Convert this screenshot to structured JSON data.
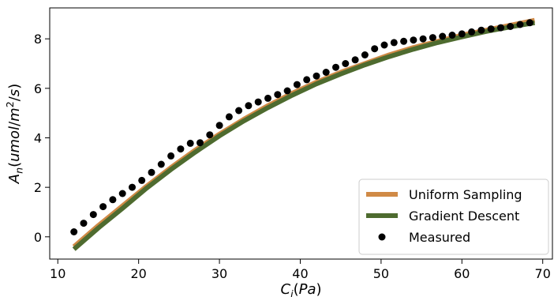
{
  "chart_data": {
    "type": "scatter",
    "xlabel": "C_i(Pa)",
    "ylabel": "A_n(umol/m^2/s)",
    "xlim": [
      9.0,
      71.2
    ],
    "ylim": [
      -0.9,
      9.25
    ],
    "xticks": [
      10,
      20,
      30,
      40,
      50,
      60,
      70
    ],
    "yticks": [
      0,
      2,
      4,
      6,
      8
    ],
    "grid": false,
    "legend_position": "lower-right",
    "series": [
      {
        "name": "Uniform Sampling",
        "kind": "line",
        "color": "#d08a46",
        "x": [
          12,
          15,
          18,
          21,
          24,
          27,
          30,
          33,
          36,
          39,
          42,
          45,
          48,
          51,
          54,
          57,
          60,
          63,
          66,
          69
        ],
        "y": [
          -0.4,
          0.45,
          1.25,
          2.05,
          2.8,
          3.5,
          4.15,
          4.75,
          5.3,
          5.8,
          6.25,
          6.65,
          7.0,
          7.35,
          7.65,
          7.9,
          8.15,
          8.35,
          8.55,
          8.75
        ]
      },
      {
        "name": "Gradient Descent",
        "kind": "line",
        "color": "#4e6b2f",
        "x": [
          12,
          15,
          18,
          21,
          24,
          27,
          30,
          33,
          36,
          39,
          42,
          45,
          48,
          51,
          54,
          57,
          60,
          63,
          66,
          69
        ],
        "y": [
          -0.5,
          0.35,
          1.15,
          1.97,
          2.72,
          3.42,
          4.08,
          4.68,
          5.22,
          5.72,
          6.18,
          6.58,
          6.95,
          7.28,
          7.58,
          7.85,
          8.08,
          8.3,
          8.48,
          8.65
        ]
      },
      {
        "name": "Measured",
        "kind": "scatter",
        "color": "#000000",
        "x": [
          12,
          13.2,
          14.4,
          15.6,
          16.8,
          18,
          19.2,
          20.4,
          21.6,
          22.8,
          24,
          25.2,
          26.4,
          27.6,
          28.8,
          30,
          31.2,
          32.4,
          33.6,
          34.8,
          36,
          37.2,
          38.4,
          39.6,
          40.8,
          42,
          43.2,
          44.4,
          45.6,
          46.8,
          48,
          49.2,
          50.4,
          51.6,
          52.8,
          54,
          55.2,
          56.4,
          57.6,
          58.8,
          60,
          61.2,
          62.4,
          63.6,
          64.8,
          66,
          67.2,
          68.4
        ],
        "y": [
          0.2,
          0.55,
          0.9,
          1.22,
          1.5,
          1.75,
          2.0,
          2.28,
          2.6,
          2.93,
          3.27,
          3.55,
          3.78,
          3.8,
          4.12,
          4.5,
          4.85,
          5.1,
          5.3,
          5.45,
          5.6,
          5.75,
          5.9,
          6.15,
          6.35,
          6.5,
          6.65,
          6.85,
          7.0,
          7.15,
          7.35,
          7.6,
          7.75,
          7.85,
          7.9,
          7.95,
          8.0,
          8.05,
          8.1,
          8.15,
          8.2,
          8.28,
          8.35,
          8.4,
          8.45,
          8.5,
          8.58,
          8.65
        ]
      }
    ]
  }
}
